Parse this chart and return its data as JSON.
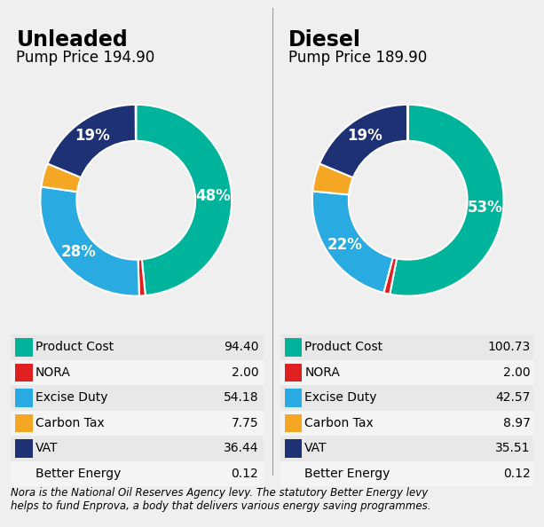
{
  "unleaded": {
    "title": "Unleaded",
    "subtitle": "Pump Price 194.90",
    "values": [
      94.4,
      2.0,
      54.18,
      7.75,
      36.44,
      0.12
    ],
    "display_labels": [
      "48%",
      "",
      "28%",
      "",
      "19%",
      ""
    ],
    "legend_labels": [
      "Product Cost",
      "NORA",
      "Excise Duty",
      "Carbon Tax",
      "VAT",
      "Better Energy"
    ],
    "legend_values": [
      "94.40",
      "2.00",
      "54.18",
      "7.75",
      "36.44",
      "0.12"
    ]
  },
  "diesel": {
    "title": "Diesel",
    "subtitle": "Pump Price 189.90",
    "values": [
      100.73,
      2.0,
      42.57,
      8.97,
      35.51,
      0.12
    ],
    "display_labels": [
      "53%",
      "",
      "22%",
      "",
      "19%",
      ""
    ],
    "legend_labels": [
      "Product Cost",
      "NORA",
      "Excise Duty",
      "Carbon Tax",
      "VAT",
      "Better Energy"
    ],
    "legend_values": [
      "100.73",
      "2.00",
      "42.57",
      "8.97",
      "35.51",
      "0.12"
    ]
  },
  "colors": [
    "#00b49c",
    "#e02020",
    "#29abe2",
    "#f5a623",
    "#1e3175",
    "#ffffff"
  ],
  "bg_color": "#efefef",
  "row_colors": [
    "#e8e8e8",
    "#f4f4f4"
  ],
  "donut_width": 0.38,
  "footnote": "Nora is the National Oil Reserves Agency levy. The statutory Better Energy levy\nhelps to fund Enprova, a body that delivers various energy saving programmes.",
  "divider_color": "#999999"
}
